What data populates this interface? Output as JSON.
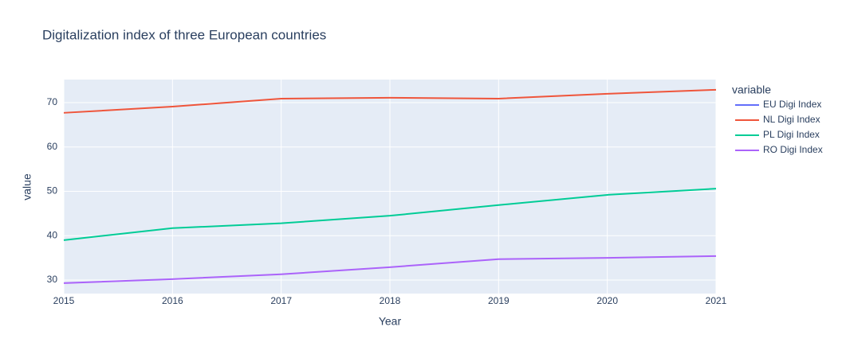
{
  "chart_data": {
    "type": "line",
    "title": "Digitalization index of three European countries",
    "x_label": "Year",
    "y_label": "value",
    "legend_title": "variable",
    "x": [
      2015,
      2016,
      2017,
      2018,
      2019,
      2020,
      2021
    ],
    "xlim": [
      2015,
      2021
    ],
    "xticks": [
      2015,
      2016,
      2017,
      2018,
      2019,
      2020,
      2021
    ],
    "ylim": [
      26.95,
      75.2
    ],
    "yticks": [
      30,
      40,
      50,
      60,
      70
    ],
    "grid": true,
    "series": [
      {
        "name": "EU Digi Index",
        "color": "#636efa",
        "values": [
          null,
          null,
          null,
          null,
          null,
          null,
          null
        ]
      },
      {
        "name": "NL Digi Index",
        "color": "#EF553B",
        "values": [
          67.7,
          69.1,
          70.9,
          71.1,
          70.9,
          72.0,
          72.9
        ]
      },
      {
        "name": "PL Digi Index",
        "color": "#00cc96",
        "values": [
          39.0,
          41.7,
          42.8,
          44.5,
          46.9,
          49.2,
          50.6
        ]
      },
      {
        "name": "RO Digi Index",
        "color": "#ab63fa",
        "values": [
          29.3,
          30.2,
          31.3,
          32.9,
          34.7,
          35.0,
          35.4
        ]
      }
    ]
  }
}
